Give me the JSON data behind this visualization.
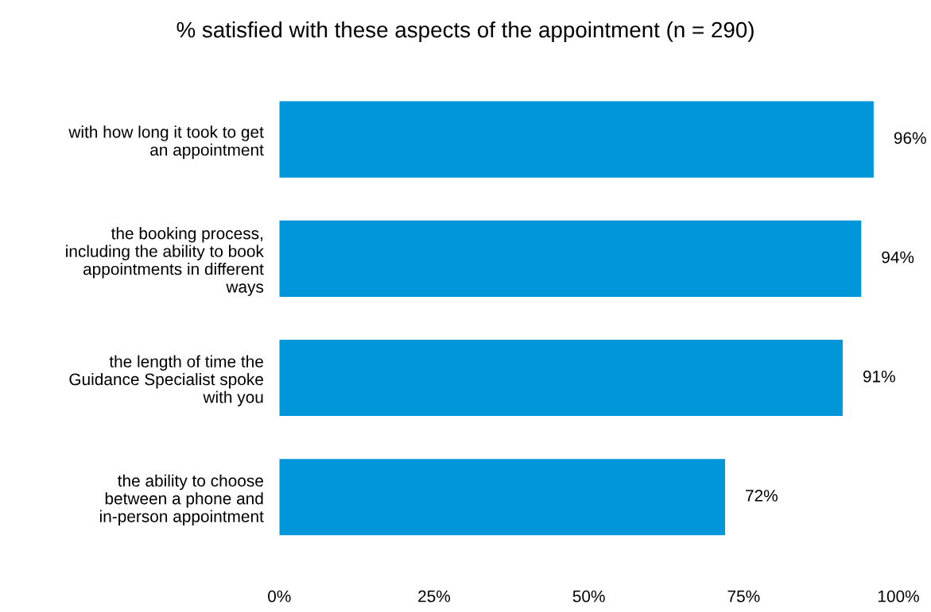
{
  "chart_data": {
    "type": "bar",
    "orientation": "horizontal",
    "title": "% satisfied with these aspects of the appointment (n = 290)",
    "categories": [
      "with how long it took to get\nan appointment",
      "the booking process,\nincluding the ability to book\nappointments in different\nways",
      "the length of time the\nGuidance Specialist spoke\nwith you",
      "the ability to choose\nbetween a phone and\nin-person appointment"
    ],
    "values": [
      96,
      94,
      91,
      72
    ],
    "color": "#0096d9",
    "value_labels": [
      "96%",
      "94%",
      "91%",
      "72%"
    ],
    "xlim": [
      0,
      100
    ],
    "xticks": [
      {
        "value": 0,
        "label": "0%"
      },
      {
        "value": 25,
        "label": "25%"
      },
      {
        "value": 50,
        "label": "50%"
      },
      {
        "value": 75,
        "label": "75%"
      },
      {
        "value": 100,
        "label": "100%"
      }
    ],
    "grid": false,
    "legend": false
  }
}
